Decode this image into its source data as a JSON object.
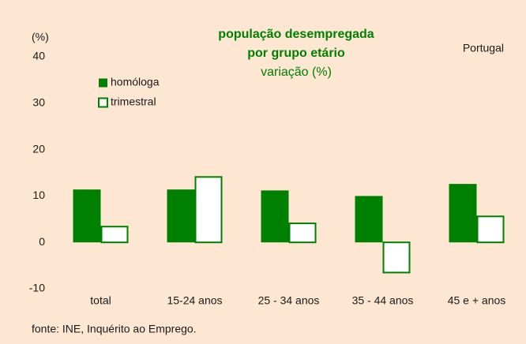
{
  "chart_data": {
    "type": "bar",
    "title": [
      "população desempregada",
      "por grupo etário"
    ],
    "subtitle": "variação (%)",
    "y_label": "(%)",
    "annotation": "Portugal",
    "source": "fonte: INE, Inquérito ao Emprego.",
    "categories": [
      "total",
      "15-24 anos",
      "25 - 34 anos",
      "35 - 44 anos",
      "45 e + anos"
    ],
    "series": [
      {
        "name": "homóloga",
        "color": "#008000",
        "style": "filled",
        "values": [
          11.4,
          11.4,
          11.2,
          10.0,
          12.6
        ]
      },
      {
        "name": "trimestral",
        "color": "#008000",
        "style": "outline",
        "values": [
          3.4,
          14.1,
          4.1,
          -6.5,
          5.6
        ]
      }
    ],
    "ylim": [
      -10,
      40
    ],
    "yticks": [
      -10,
      0,
      10,
      20,
      30,
      40
    ],
    "grid": false
  }
}
